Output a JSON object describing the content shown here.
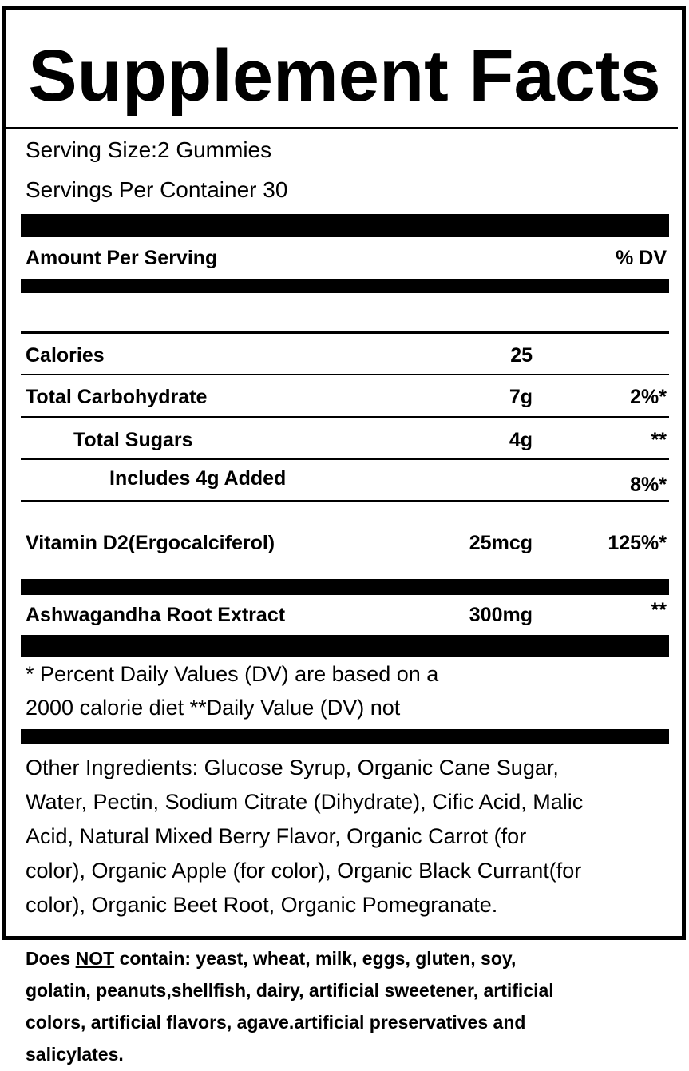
{
  "title": "Supplement Facts",
  "serving_size": "Serving Size:2 Gummies",
  "servings_per_container": "Servings Per Container 30",
  "header": {
    "amount": "Amount Per Serving",
    "dv": "% DV"
  },
  "rows": [
    {
      "name": "Calories",
      "amount": "25",
      "dv": ""
    },
    {
      "name": "Total Carbohydrate",
      "amount": "7g",
      "dv": "2%*"
    },
    {
      "name": "Total Sugars",
      "amount": "4g",
      "dv": "**"
    },
    {
      "name": "Includes 4g Added",
      "amount": "",
      "dv": "8%*"
    },
    {
      "name": "Vitamin D2(Ergocalciferol)",
      "amount": "25mcg",
      "dv": "125%*"
    },
    {
      "name": "Ashwagandha Root Extract",
      "amount": "300mg",
      "dv": "**"
    }
  ],
  "footnote": [
    "* Percent Daily Values (DV) are based on a",
    "2000 calorie diet **Daily Value (DV) not"
  ],
  "other_ingredients": [
    "Other Ingredients:  Glucose Syrup, Organic Cane Sugar,",
    "Water, Pectin, Sodium Citrate (Dihydrate), Cific Acid, Malic",
    "Acid, Natural Mixed Berry Flavor, Organic Carrot (for",
    "color), Organic Apple (for color), Organic Black Currant(for",
    "color), Organic Beet Root, Organic Pomegranate."
  ],
  "does_not": {
    "prefix": "Does ",
    "not": "NOT",
    "rest": " contain: yeast, wheat, milk, eggs, gluten, soy,",
    "lines": [
      "golatin, peanuts,shellfish, dairy, artificial sweetener, artificial",
      "colors, artificial flavors, agave.artificial preservatives and",
      "salicylates."
    ]
  }
}
